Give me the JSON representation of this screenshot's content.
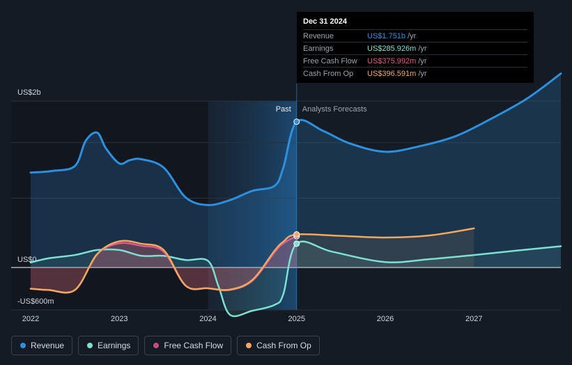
{
  "tooltip": {
    "date": "Dec 31 2024",
    "rows": [
      {
        "label": "Revenue",
        "value": "US$1.751b",
        "unit": "/yr",
        "color": "#2e8fdc"
      },
      {
        "label": "Earnings",
        "value": "US$285.926m",
        "unit": "/yr",
        "color": "#7ee0d0"
      },
      {
        "label": "Free Cash Flow",
        "value": "US$375.992m",
        "unit": "/yr",
        "color": "#e05a8a"
      },
      {
        "label": "Cash From Op",
        "value": "US$396.591m",
        "unit": "/yr",
        "color": "#f0a860"
      }
    ]
  },
  "chart_data": {
    "type": "area",
    "title": "",
    "xlabel": "",
    "ylabel": "",
    "x_ticks": [
      "2022",
      "2023",
      "2024",
      "2025",
      "2026",
      "2027"
    ],
    "y_labels": [
      "US$2b",
      "US$0",
      "-US$600m"
    ],
    "xlim": [
      2021.78,
      2027.98
    ],
    "ylim": [
      -600,
      2000
    ],
    "past_label": "Past",
    "forecast_label": "Analysts Forecasts",
    "past_start": 2024.0,
    "forecast_start": 2025.0,
    "legend_position": "bottom-left",
    "series": [
      {
        "name": "Revenue",
        "color": "#2e8fdc",
        "x": [
          2022.0,
          2022.25,
          2022.5,
          2022.62,
          2022.75,
          2022.85,
          2023.0,
          2023.12,
          2023.25,
          2023.5,
          2023.75,
          2024.0,
          2024.25,
          2024.5,
          2024.75,
          2024.85,
          2025.0,
          2025.3,
          2025.6,
          2026.0,
          2026.4,
          2026.8,
          2027.2,
          2027.6,
          2028.0
        ],
        "values": [
          1140,
          1160,
          1220,
          1520,
          1620,
          1430,
          1250,
          1290,
          1300,
          1200,
          840,
          750,
          810,
          920,
          980,
          1200,
          1751,
          1640,
          1490,
          1390,
          1460,
          1580,
          1790,
          2030,
          2330
        ]
      },
      {
        "name": "Earnings",
        "color": "#7ee0d0",
        "x": [
          2022.0,
          2022.2,
          2022.5,
          2022.75,
          2023.0,
          2023.25,
          2023.5,
          2023.75,
          2024.0,
          2024.12,
          2024.25,
          2024.5,
          2024.75,
          2024.85,
          2025.0,
          2025.4,
          2026.0,
          2026.5,
          2027.0,
          2027.5,
          2028.0
        ],
        "values": [
          60,
          110,
          150,
          210,
          210,
          140,
          140,
          90,
          80,
          -230,
          -570,
          -520,
          -450,
          -320,
          286,
          190,
          65,
          100,
          150,
          205,
          255
        ]
      },
      {
        "name": "Free Cash Flow",
        "color": "#e05a8a",
        "x": [
          2022.0,
          2022.2,
          2022.5,
          2022.75,
          2023.0,
          2023.25,
          2023.5,
          2023.75,
          2024.0,
          2024.25,
          2024.5,
          2024.75,
          2024.85,
          2025.0
        ],
        "values": [
          -255,
          -270,
          -270,
          160,
          290,
          260,
          190,
          -220,
          -250,
          -270,
          -160,
          180,
          290,
          376
        ]
      },
      {
        "name": "Cash From Op",
        "color": "#f0a860",
        "x": [
          2022.0,
          2022.2,
          2022.5,
          2022.75,
          2023.0,
          2023.25,
          2023.5,
          2023.75,
          2024.0,
          2024.25,
          2024.5,
          2024.75,
          2024.85,
          2025.0,
          2025.5,
          2026.0,
          2026.5,
          2027.0
        ],
        "values": [
          -255,
          -270,
          -270,
          160,
          315,
          285,
          210,
          -220,
          -250,
          -265,
          -150,
          200,
          310,
          397,
          380,
          360,
          385,
          470
        ]
      }
    ]
  },
  "legend": [
    {
      "label": "Revenue",
      "color": "#2e8fdc"
    },
    {
      "label": "Earnings",
      "color": "#7ee0d0"
    },
    {
      "label": "Free Cash Flow",
      "color": "#c34d7d"
    },
    {
      "label": "Cash From Op",
      "color": "#f0a860"
    }
  ]
}
